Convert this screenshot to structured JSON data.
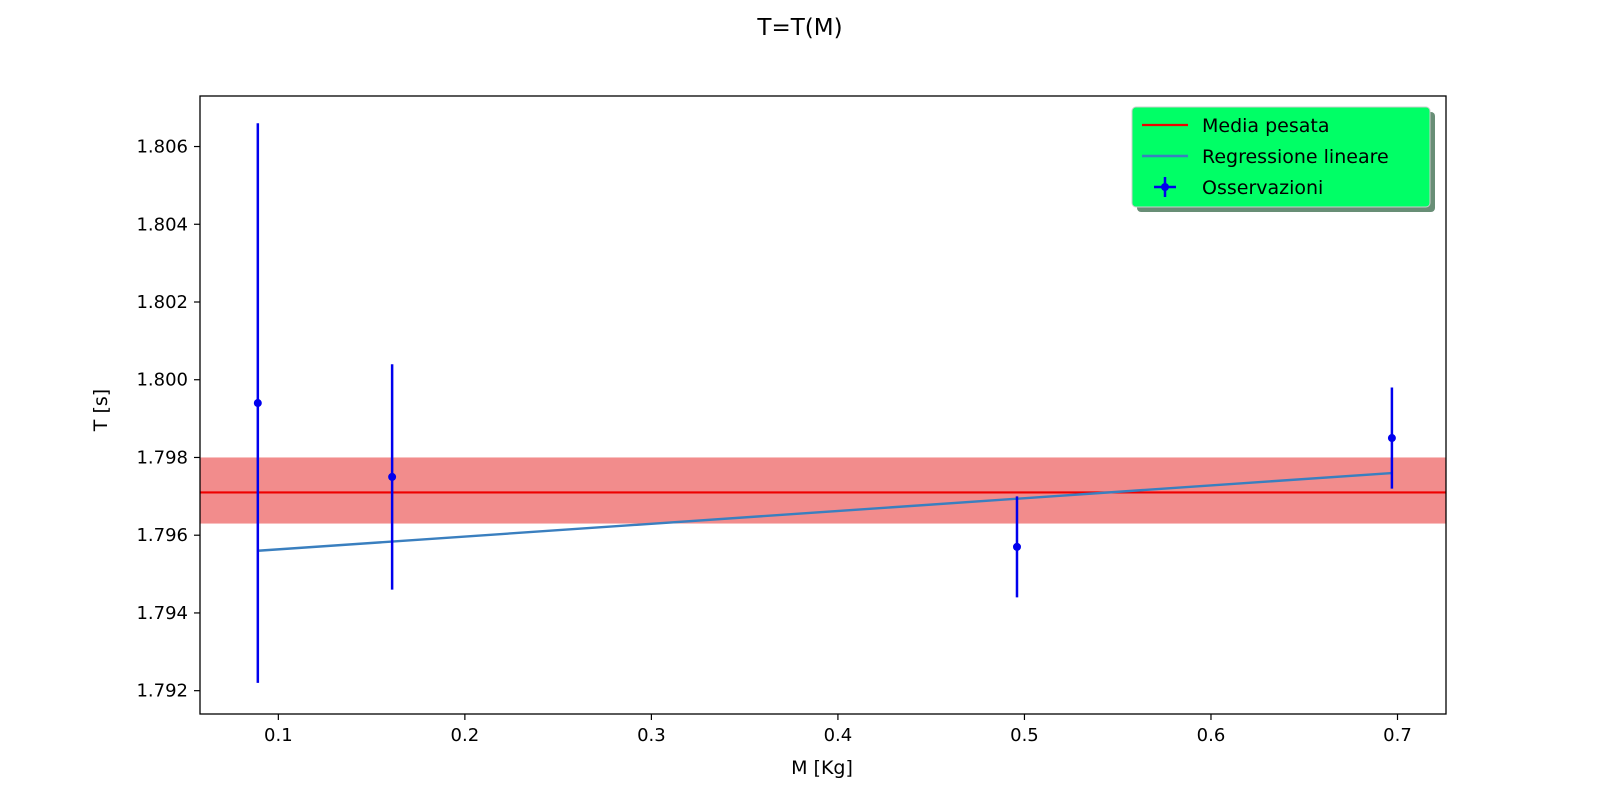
{
  "chart_data": {
    "type": "scatter",
    "title": "T=T(M)",
    "xlabel": "M [Kg]",
    "ylabel": "T [s]",
    "xlim": [
      0.058,
      0.726
    ],
    "ylim": [
      1.7914,
      1.8073
    ],
    "xticks": [
      0.1,
      0.2,
      0.3,
      0.4,
      0.5,
      0.6,
      0.7
    ],
    "xtick_labels": [
      "0.1",
      "0.2",
      "0.3",
      "0.4",
      "0.5",
      "0.6",
      "0.7"
    ],
    "yticks": [
      1.792,
      1.794,
      1.796,
      1.798,
      1.8,
      1.802,
      1.804,
      1.806
    ],
    "ytick_labels": [
      "1.792",
      "1.794",
      "1.796",
      "1.798",
      "1.800",
      "1.802",
      "1.804",
      "1.806"
    ],
    "grid": false,
    "legend_position": "top-right",
    "legend": {
      "background": "#00ff66",
      "entries": [
        "Media pesata",
        "Regressione lineare",
        "Osservazioni"
      ]
    },
    "series": [
      {
        "name": "Osservazioni",
        "type": "errorbar",
        "color": "#0000ee",
        "points": [
          {
            "x": 0.089,
            "y": 1.7994,
            "yerr": 0.0072
          },
          {
            "x": 0.161,
            "y": 1.7975,
            "yerr": 0.0029
          },
          {
            "x": 0.496,
            "y": 1.7957,
            "yerr": 0.0013
          },
          {
            "x": 0.697,
            "y": 1.7985,
            "yerr": 0.0013
          }
        ]
      },
      {
        "name": "Media pesata",
        "type": "hline",
        "color": "#ee0000",
        "y": 1.7971,
        "band": [
          1.7963,
          1.798
        ],
        "band_color": "#f28c8c"
      },
      {
        "name": "Regressione lineare",
        "type": "line",
        "color": "#3a7fbf",
        "x": [
          0.089,
          0.697
        ],
        "y": [
          1.7956,
          1.7976
        ]
      }
    ]
  }
}
